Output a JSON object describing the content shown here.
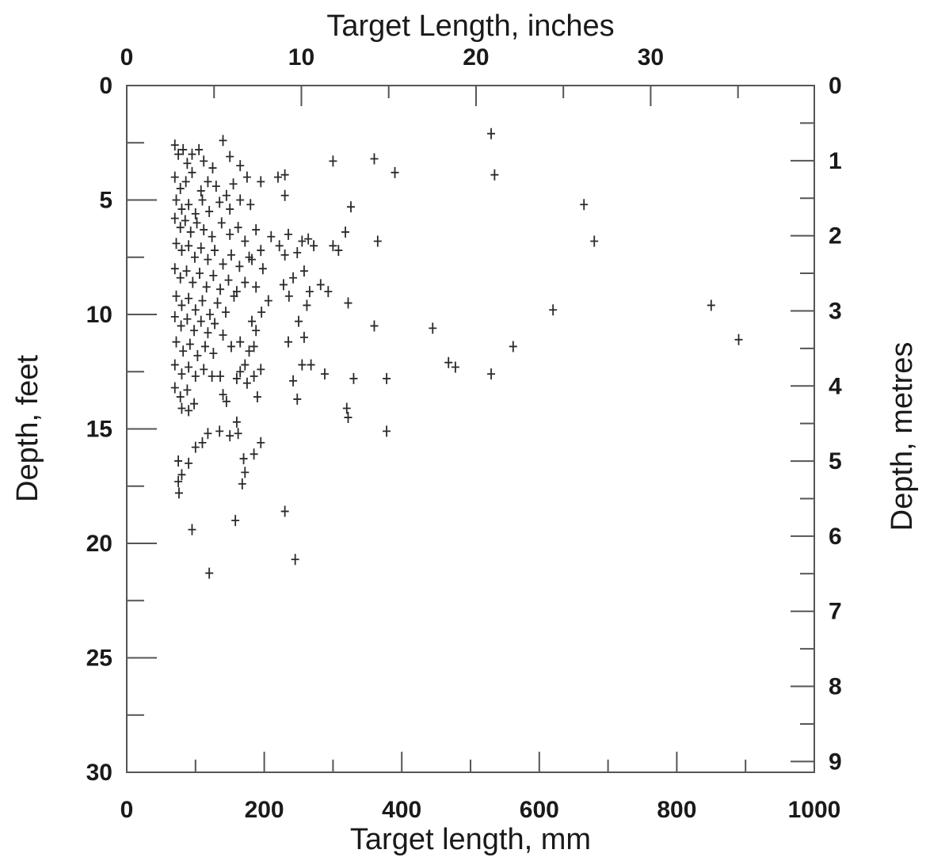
{
  "chart_data": {
    "type": "scatter",
    "marker": "plus",
    "x_bottom": {
      "label": "Target length, mm",
      "range": [
        0,
        1000
      ],
      "ticks": [
        "0",
        "200",
        "400",
        "600",
        "800",
        "1000"
      ]
    },
    "x_top": {
      "label": "Target Length, inches",
      "range_mm": [
        0,
        1000
      ],
      "ticks": [
        "0",
        "10",
        "20",
        "30"
      ]
    },
    "y_left": {
      "label": "Depth, feet",
      "range": [
        0,
        30
      ],
      "inverted": true,
      "ticks": [
        "0",
        "5",
        "10",
        "15",
        "20",
        "25",
        "30"
      ]
    },
    "y_right": {
      "label": "Depth, metres",
      "ticks": [
        "0",
        "1",
        "2",
        "3",
        "4",
        "5",
        "6",
        "7",
        "8",
        "9"
      ]
    },
    "grid": false,
    "points": [
      [
        70,
        2.6
      ],
      [
        75,
        3.0
      ],
      [
        82,
        2.8
      ],
      [
        88,
        3.4
      ],
      [
        95,
        3.0
      ],
      [
        105,
        2.8
      ],
      [
        112,
        3.3
      ],
      [
        125,
        3.6
      ],
      [
        140,
        2.4
      ],
      [
        150,
        3.1
      ],
      [
        165,
        3.5
      ],
      [
        175,
        4.0
      ],
      [
        70,
        4.0
      ],
      [
        78,
        4.5
      ],
      [
        86,
        4.2
      ],
      [
        95,
        3.8
      ],
      [
        108,
        4.6
      ],
      [
        118,
        4.2
      ],
      [
        130,
        4.4
      ],
      [
        145,
        4.8
      ],
      [
        155,
        4.3
      ],
      [
        72,
        5.0
      ],
      [
        80,
        5.4
      ],
      [
        90,
        5.2
      ],
      [
        100,
        5.6
      ],
      [
        110,
        5.0
      ],
      [
        120,
        5.5
      ],
      [
        135,
        5.1
      ],
      [
        150,
        5.4
      ],
      [
        165,
        5.0
      ],
      [
        180,
        5.2
      ],
      [
        70,
        5.8
      ],
      [
        78,
        6.2
      ],
      [
        85,
        5.9
      ],
      [
        93,
        6.4
      ],
      [
        102,
        6.0
      ],
      [
        112,
        6.3
      ],
      [
        124,
        6.6
      ],
      [
        138,
        6.0
      ],
      [
        150,
        6.5
      ],
      [
        162,
        6.2
      ],
      [
        172,
        6.8
      ],
      [
        72,
        6.9
      ],
      [
        80,
        7.2
      ],
      [
        90,
        7.0
      ],
      [
        99,
        7.5
      ],
      [
        108,
        7.1
      ],
      [
        118,
        7.6
      ],
      [
        128,
        7.2
      ],
      [
        140,
        7.8
      ],
      [
        152,
        7.4
      ],
      [
        164,
        7.9
      ],
      [
        178,
        7.5
      ],
      [
        70,
        8.0
      ],
      [
        78,
        8.4
      ],
      [
        87,
        8.1
      ],
      [
        96,
        8.6
      ],
      [
        106,
        8.2
      ],
      [
        116,
        8.8
      ],
      [
        126,
        8.3
      ],
      [
        136,
        8.9
      ],
      [
        148,
        8.5
      ],
      [
        160,
        9.0
      ],
      [
        172,
        8.6
      ],
      [
        72,
        9.2
      ],
      [
        80,
        9.6
      ],
      [
        90,
        9.3
      ],
      [
        100,
        9.8
      ],
      [
        110,
        9.4
      ],
      [
        121,
        10.0
      ],
      [
        132,
        9.5
      ],
      [
        144,
        9.9
      ],
      [
        156,
        9.2
      ],
      [
        70,
        10.1
      ],
      [
        79,
        10.5
      ],
      [
        88,
        10.2
      ],
      [
        98,
        10.7
      ],
      [
        108,
        10.3
      ],
      [
        118,
        10.8
      ],
      [
        128,
        10.4
      ],
      [
        140,
        10.9
      ],
      [
        72,
        11.2
      ],
      [
        82,
        11.6
      ],
      [
        92,
        11.3
      ],
      [
        103,
        11.8
      ],
      [
        114,
        11.4
      ],
      [
        126,
        11.7
      ],
      [
        152,
        11.4
      ],
      [
        165,
        11.2
      ],
      [
        178,
        11.6
      ],
      [
        70,
        12.2
      ],
      [
        80,
        12.6
      ],
      [
        90,
        12.3
      ],
      [
        100,
        12.7
      ],
      [
        112,
        12.4
      ],
      [
        124,
        12.7
      ],
      [
        136,
        12.7
      ],
      [
        70,
        13.2
      ],
      [
        78,
        13.6
      ],
      [
        88,
        13.3
      ],
      [
        98,
        13.9
      ],
      [
        80,
        14.1
      ],
      [
        90,
        14.2
      ],
      [
        140,
        13.5
      ],
      [
        145,
        13.8
      ],
      [
        160,
        12.8
      ],
      [
        175,
        13.0
      ],
      [
        185,
        12.7
      ],
      [
        190,
        13.6
      ],
      [
        172,
        12.2
      ],
      [
        165,
        12.5
      ],
      [
        195,
        12.4
      ],
      [
        185,
        11.4
      ],
      [
        188,
        10.7
      ],
      [
        182,
        10.3
      ],
      [
        196,
        9.9
      ],
      [
        206,
        9.4
      ],
      [
        188,
        8.8
      ],
      [
        198,
        8.0
      ],
      [
        182,
        7.6
      ],
      [
        195,
        7.2
      ],
      [
        210,
        6.6
      ],
      [
        188,
        6.3
      ],
      [
        222,
        7.0
      ],
      [
        230,
        7.4
      ],
      [
        235,
        6.5
      ],
      [
        248,
        7.3
      ],
      [
        255,
        6.8
      ],
      [
        264,
        6.7
      ],
      [
        272,
        7.0
      ],
      [
        258,
        8.1
      ],
      [
        266,
        9.0
      ],
      [
        282,
        8.7
      ],
      [
        293,
        9.0
      ],
      [
        300,
        7.0
      ],
      [
        308,
        7.2
      ],
      [
        318,
        6.4
      ],
      [
        326,
        5.3
      ],
      [
        242,
        8.4
      ],
      [
        228,
        8.7
      ],
      [
        236,
        9.2
      ],
      [
        250,
        10.3
      ],
      [
        262,
        9.6
      ],
      [
        258,
        11.0
      ],
      [
        235,
        11.2
      ],
      [
        255,
        12.2
      ],
      [
        268,
        12.2
      ],
      [
        288,
        12.6
      ],
      [
        248,
        13.7
      ],
      [
        242,
        12.9
      ],
      [
        320,
        14.1
      ],
      [
        322,
        14.5
      ],
      [
        330,
        12.8
      ],
      [
        322,
        9.5
      ],
      [
        378,
        12.8
      ],
      [
        378,
        15.1
      ],
      [
        360,
        10.5
      ],
      [
        445,
        10.6
      ],
      [
        468,
        12.1
      ],
      [
        478,
        12.3
      ],
      [
        530,
        12.6
      ],
      [
        562,
        11.4
      ],
      [
        620,
        9.8
      ],
      [
        665,
        5.2
      ],
      [
        680,
        6.8
      ],
      [
        850,
        9.6
      ],
      [
        890,
        11.1
      ],
      [
        365,
        6.8
      ],
      [
        390,
        3.8
      ],
      [
        360,
        3.2
      ],
      [
        300,
        3.3
      ],
      [
        230,
        3.9
      ],
      [
        220,
        4.0
      ],
      [
        195,
        4.2
      ],
      [
        230,
        4.8
      ],
      [
        530,
        2.1
      ],
      [
        535,
        3.9
      ],
      [
        160,
        14.7
      ],
      [
        162,
        15.2
      ],
      [
        150,
        15.3
      ],
      [
        135,
        15.1
      ],
      [
        118,
        15.2
      ],
      [
        110,
        15.6
      ],
      [
        100,
        15.8
      ],
      [
        75,
        16.4
      ],
      [
        80,
        17.0
      ],
      [
        75,
        17.3
      ],
      [
        90,
        16.5
      ],
      [
        76,
        17.8
      ],
      [
        170,
        16.3
      ],
      [
        172,
        16.9
      ],
      [
        168,
        17.4
      ],
      [
        195,
        15.6
      ],
      [
        185,
        16.1
      ],
      [
        230,
        18.6
      ],
      [
        158,
        19.0
      ],
      [
        95,
        19.4
      ],
      [
        245,
        20.7
      ],
      [
        120,
        21.3
      ]
    ]
  }
}
